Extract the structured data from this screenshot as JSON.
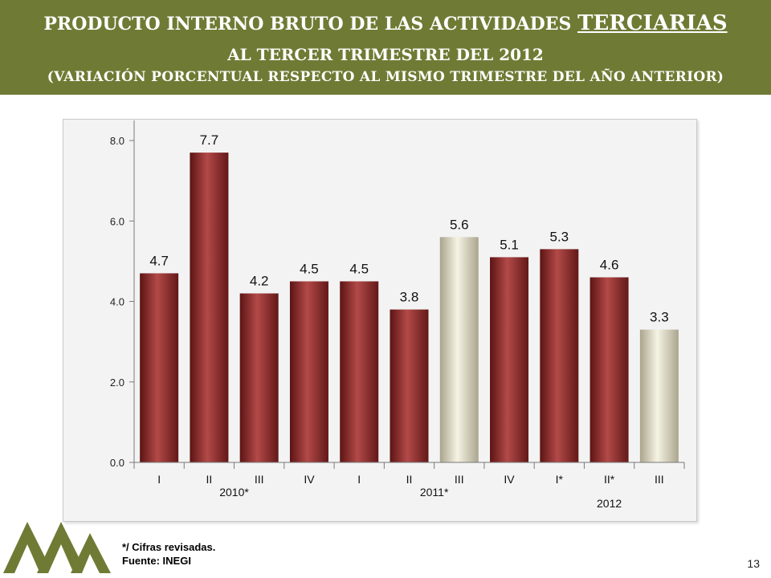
{
  "header": {
    "title_prefix": "PRODUCTO INTERNO BRUTO DE LAS ACTIVIDADES",
    "title_highlight": "TERCIARIAS",
    "subtitle": "AL TERCER TRIMESTRE DEL 2012",
    "note": "(VARIACIÓN PORCENTUAL RESPECTO AL MISMO TRIMESTRE DEL AÑO ANTERIOR)"
  },
  "chart_data": {
    "type": "bar",
    "categories": [
      "I",
      "II",
      "III",
      "IV",
      "I",
      "II",
      "III",
      "IV",
      "I*",
      "II*",
      "III"
    ],
    "values": [
      4.7,
      7.7,
      4.2,
      4.5,
      4.5,
      3.8,
      5.6,
      5.1,
      5.3,
      4.6,
      3.3
    ],
    "value_labels": [
      "4.7",
      "7.7",
      "4.2",
      "4.5",
      "4.5",
      "3.8",
      "5.6",
      "5.1",
      "5.3",
      "4.6",
      "3.3"
    ],
    "highlight": [
      false,
      false,
      false,
      false,
      false,
      false,
      true,
      false,
      false,
      false,
      true
    ],
    "year_groups": [
      {
        "label": "2010*",
        "start": 0,
        "end": 3
      },
      {
        "label": "2011*",
        "start": 4,
        "end": 7
      },
      {
        "label": "2012",
        "start": 8,
        "end": 10
      }
    ],
    "ylim": [
      0,
      8.5
    ],
    "yticks": [
      0,
      2,
      4,
      6,
      8
    ],
    "ytick_labels": [
      "0.0",
      "2.0",
      "4.0",
      "6.0",
      "8.0"
    ],
    "grid": false,
    "colors": {
      "bar": "#8e2a29",
      "bar_highlight": "#d8d3bb"
    }
  },
  "footer": {
    "revised_note": "*/ Cifras revisadas.",
    "source": "Fuente: INEGI",
    "page_number": "13"
  },
  "logo_icon": "company-logo-icon"
}
